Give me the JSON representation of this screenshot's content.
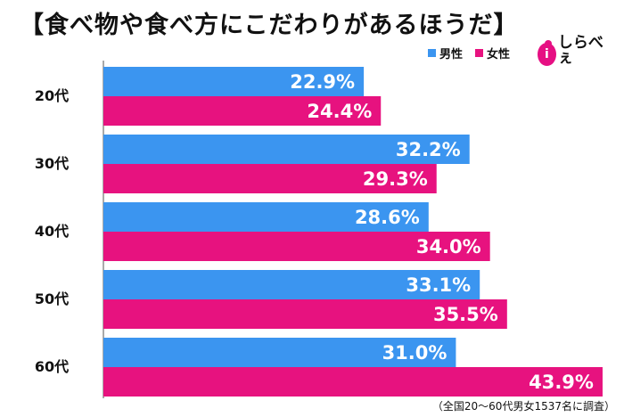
{
  "title": "【食べ物や食べ方にこだわりがあるほうだ】",
  "legend": [
    {
      "label": "男性",
      "color": "#3b95f0"
    },
    {
      "label": "女性",
      "color": "#e7127f"
    }
  ],
  "logo": {
    "text": "しらべぇ",
    "icon": "magnifier-i-icon"
  },
  "footnote": "（全国20〜60代男女1537名に調査）",
  "chart_data": {
    "type": "bar",
    "orientation": "horizontal",
    "categories": [
      "20代",
      "30代",
      "40代",
      "50代",
      "60代"
    ],
    "series": [
      {
        "name": "男性",
        "values": [
          22.9,
          32.2,
          28.6,
          33.1,
          31.0
        ],
        "labels": [
          "22.9%",
          "32.2%",
          "28.6%",
          "33.1%",
          "31.0%"
        ],
        "color": "#3b95f0"
      },
      {
        "name": "女性",
        "values": [
          24.4,
          29.3,
          34.0,
          35.5,
          43.9
        ],
        "labels": [
          "24.4%",
          "29.3%",
          "34.0%",
          "35.5%",
          "43.9%"
        ],
        "color": "#e7127f"
      }
    ],
    "xlim": [
      0,
      45
    ],
    "grid": false,
    "legend_position": "top-right"
  }
}
